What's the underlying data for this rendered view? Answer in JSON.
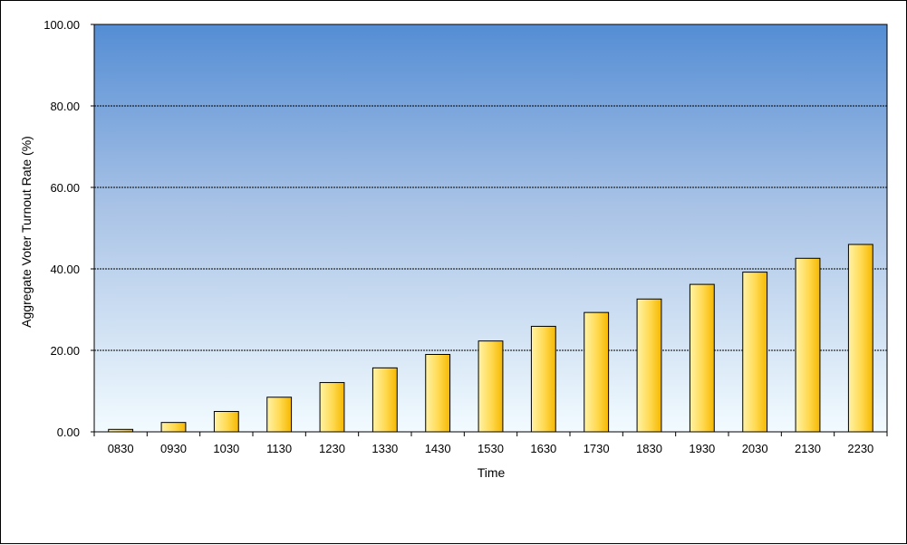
{
  "chart_data": {
    "type": "bar",
    "title": "",
    "xlabel": "Time",
    "ylabel": "Aggregate Voter Turnout Rate (%)",
    "ylim": [
      0,
      100
    ],
    "ytick_values": [
      0,
      20,
      40,
      60,
      80,
      100
    ],
    "ytick_labels": [
      "0.00",
      "20.00",
      "40.00",
      "60.00",
      "80.00",
      "100.00"
    ],
    "categories": [
      "0830",
      "0930",
      "1030",
      "1130",
      "1230",
      "1330",
      "1430",
      "1530",
      "1630",
      "1730",
      "1830",
      "1930",
      "2030",
      "2130",
      "2230"
    ],
    "values": [
      0.6,
      2.3,
      5.0,
      8.5,
      12.1,
      15.7,
      19.0,
      22.3,
      25.9,
      29.3,
      32.6,
      36.2,
      39.2,
      42.6,
      46.0
    ],
    "grid": true,
    "legend": "none",
    "colors": {
      "plot_top": "#548dd4",
      "plot_bottom": "#f2fbff",
      "bar_light": "#fff3a6",
      "bar_dark": "#f5b800",
      "bar_edge": "#000000",
      "gridline": "#000000"
    }
  }
}
